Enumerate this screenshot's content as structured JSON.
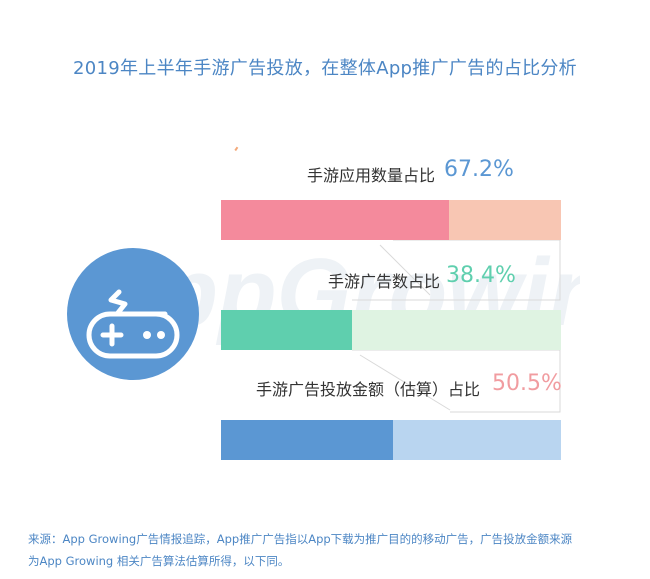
{
  "title": "2019年上半年手游广告投放，在整体App推广广告的占比分析",
  "watermark": "AppGrowing",
  "chart_data": {
    "type": "bar",
    "orientation": "horizontal-stacked-100",
    "categories": [
      "手游应用数量占比",
      "手游广告数占比",
      "手游广告投放金额（估算）占比"
    ],
    "values": [
      67.2,
      38.4,
      50.5
    ],
    "value_labels": [
      "67.2%",
      "38.4%",
      "50.5%"
    ],
    "unit": "%",
    "ylim": [
      0,
      100
    ],
    "colors": {
      "main": [
        "#f48a9c",
        "#5fcfae",
        "#5b97d3"
      ],
      "rest": [
        "#f8c6b3",
        "#dff3e2",
        "#b9d5f0"
      ],
      "value_text": [
        "#5b97d3",
        "#5fcfae",
        "#f19ca0"
      ]
    }
  },
  "icon": "gamepad-icon",
  "source_note": {
    "line1": "来源：App Growing广告情报追踪，App推广广告指以App下载为推广目的的移动广告，广告投放金额来源",
    "line2": "为App Growing 相关广告算法估算所得，以下同。"
  }
}
